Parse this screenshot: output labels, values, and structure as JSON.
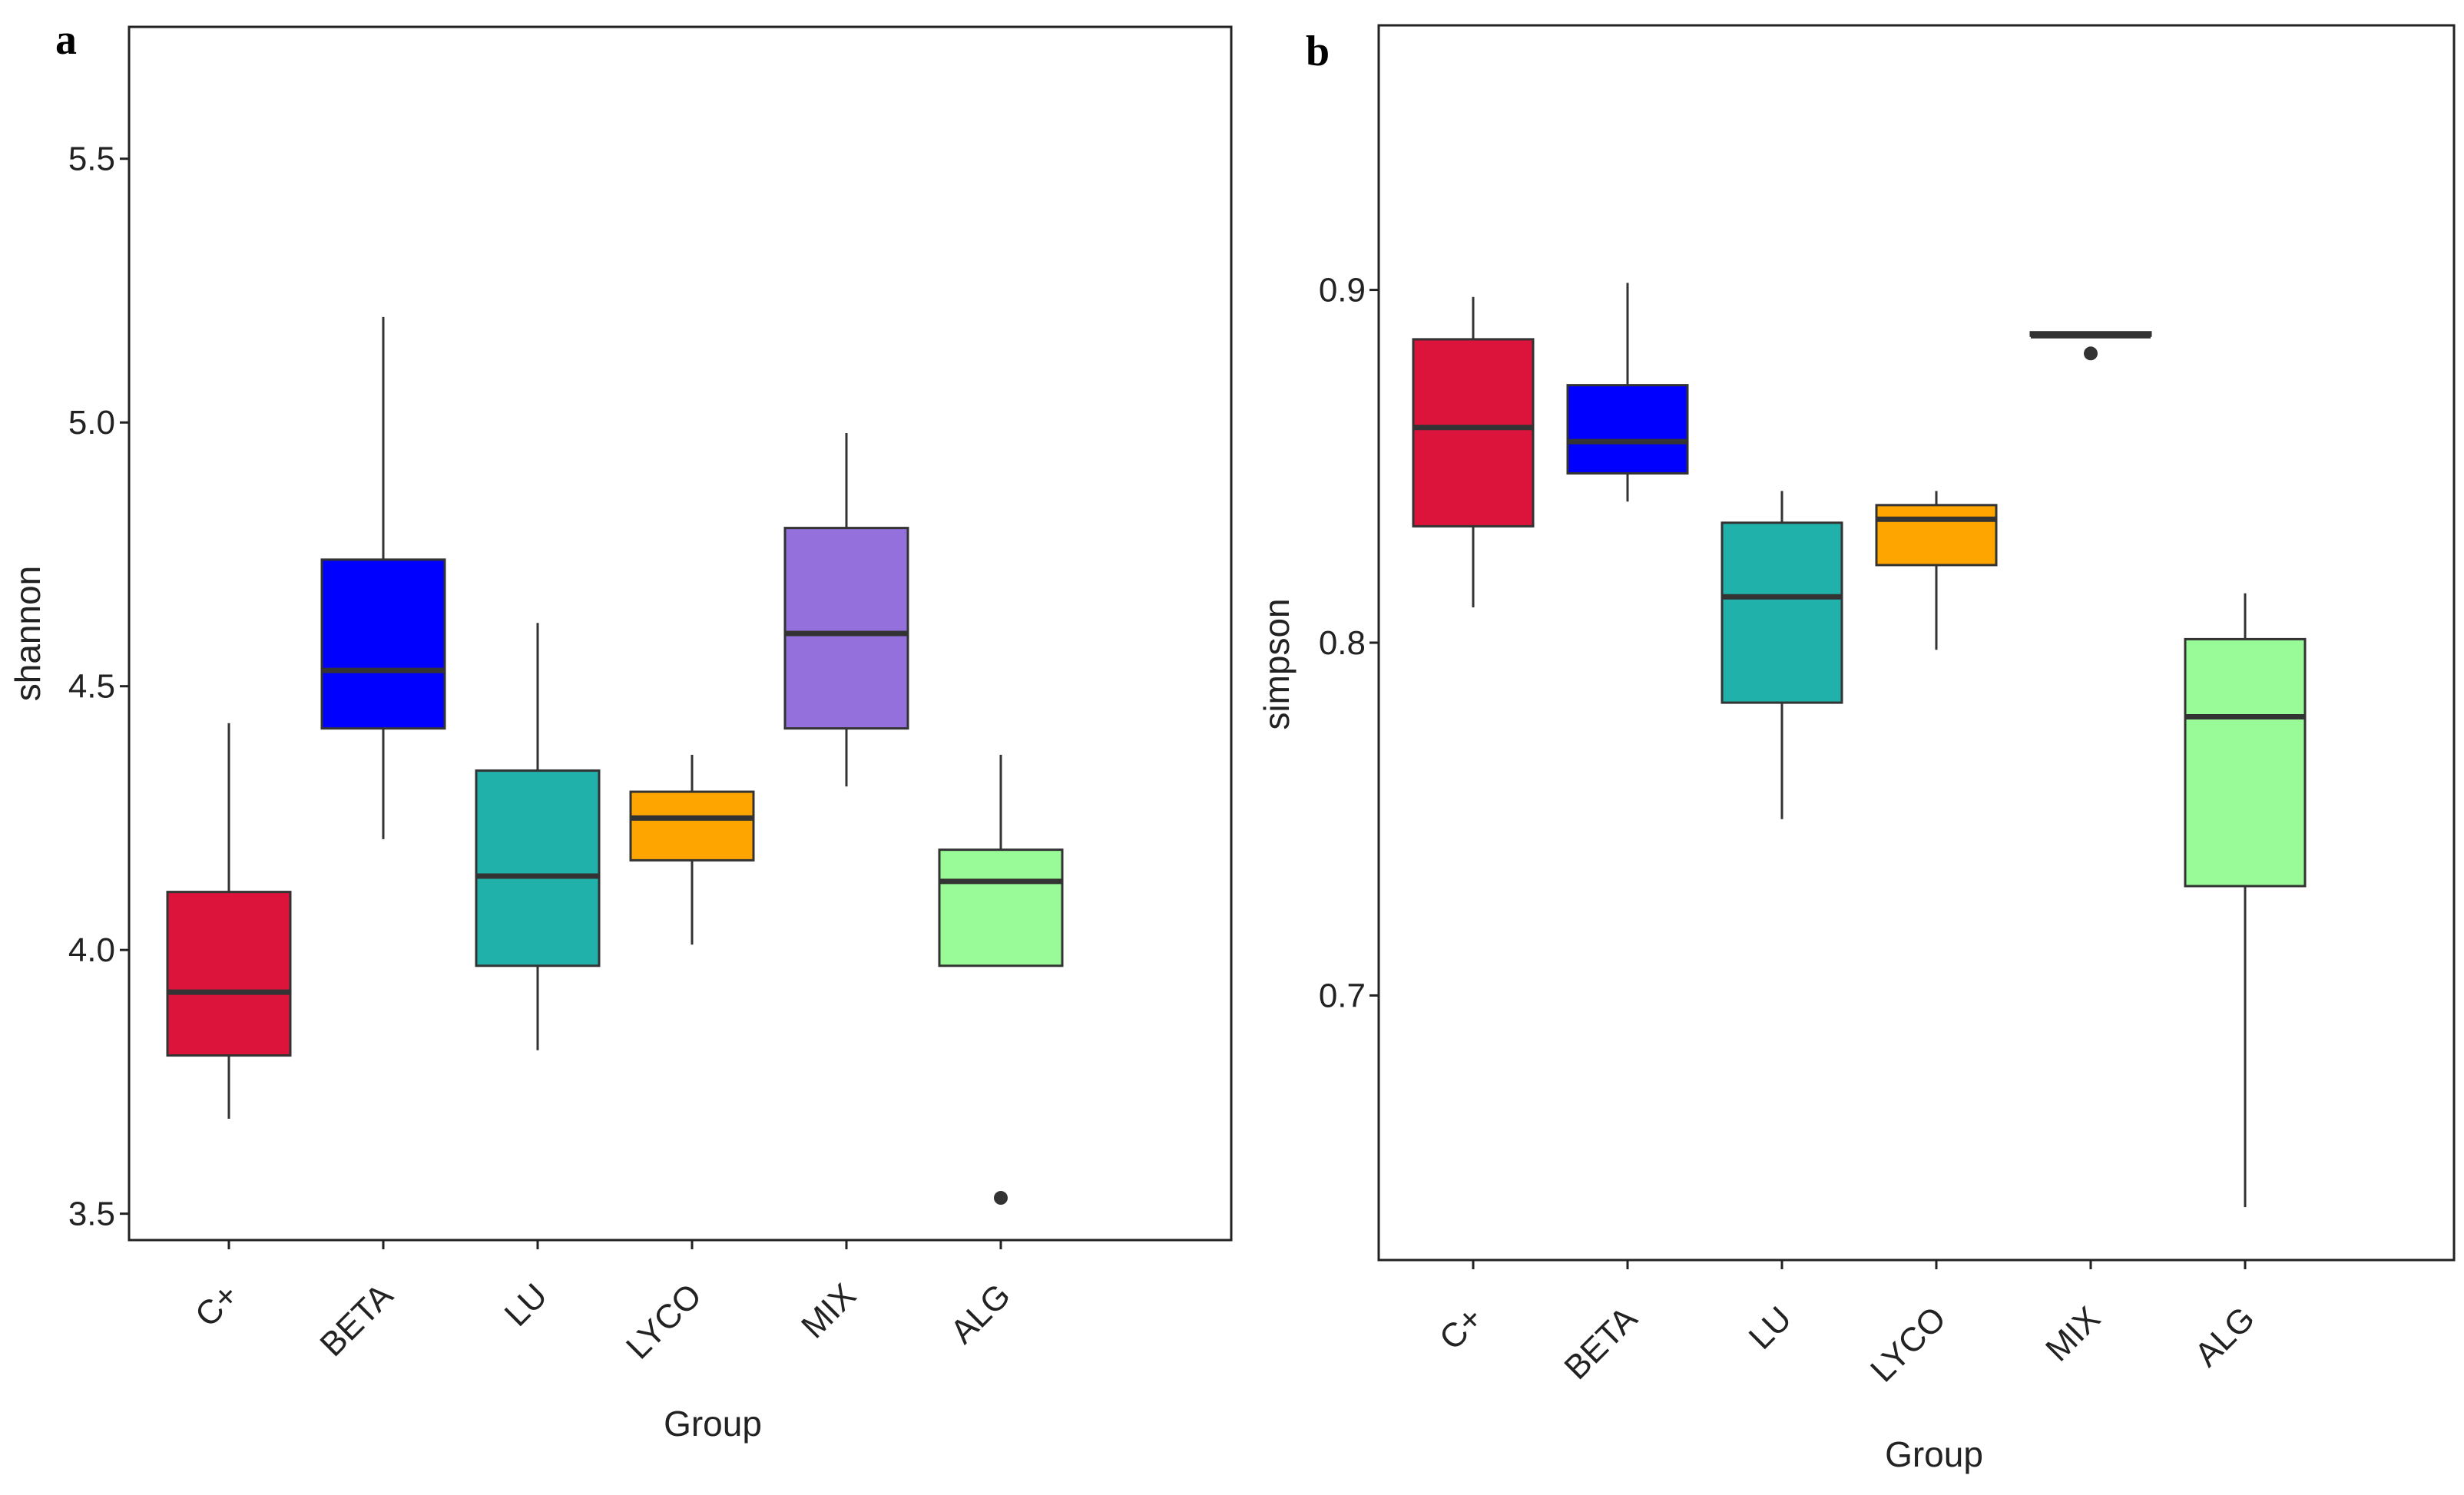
{
  "chart_data": [
    {
      "type": "boxplot",
      "panel_label": "a",
      "xlabel": "Group",
      "ylabel": "shannon",
      "ylim": [
        3.45,
        5.75
      ],
      "yticks": [
        "3.5",
        "4.0",
        "4.5",
        "5.0",
        "5.5"
      ],
      "categories": [
        "C+",
        "BETA",
        "LU",
        "LYCO",
        "MIX",
        "ALG"
      ],
      "boxes": [
        {
          "group": "C+",
          "color": "#DC143C",
          "whisker_low": 3.68,
          "q1": 3.8,
          "median": 3.92,
          "q3": 4.11,
          "whisker_high": 4.43,
          "outliers": []
        },
        {
          "group": "BETA",
          "color": "#0000FF",
          "whisker_low": 4.21,
          "q1": 4.42,
          "median": 4.53,
          "q3": 4.74,
          "whisker_high": 5.2,
          "outliers": []
        },
        {
          "group": "LU",
          "color": "#20B2AA",
          "whisker_low": 3.81,
          "q1": 3.97,
          "median": 4.14,
          "q3": 4.34,
          "whisker_high": 4.62,
          "outliers": []
        },
        {
          "group": "LYCO",
          "color": "#FFA500",
          "whisker_low": 4.01,
          "q1": 4.17,
          "median": 4.25,
          "q3": 4.3,
          "whisker_high": 4.37,
          "outliers": []
        },
        {
          "group": "MIX",
          "color": "#9370DB",
          "whisker_low": 4.31,
          "q1": 4.42,
          "median": 4.6,
          "q3": 4.8,
          "whisker_high": 4.98,
          "outliers": []
        },
        {
          "group": "ALG",
          "color": "#98FB98",
          "whisker_low": 3.97,
          "q1": 3.97,
          "median": 4.13,
          "q3": 4.19,
          "whisker_high": 4.37,
          "outliers": [
            3.53
          ]
        }
      ]
    },
    {
      "type": "boxplot",
      "panel_label": "b",
      "xlabel": "Group",
      "ylabel": "simpson",
      "ylim": [
        0.625,
        0.975
      ],
      "yticks": [
        "0.7",
        "0.8",
        "0.9"
      ],
      "categories": [
        "C+",
        "BETA",
        "LU",
        "LYCO",
        "MIX",
        "ALG"
      ],
      "boxes": [
        {
          "group": "C+",
          "color": "#DC143C",
          "whisker_low": 0.81,
          "q1": 0.833,
          "median": 0.861,
          "q3": 0.886,
          "whisker_high": 0.898,
          "outliers": []
        },
        {
          "group": "BETA",
          "color": "#0000FF",
          "whisker_low": 0.84,
          "q1": 0.848,
          "median": 0.857,
          "q3": 0.873,
          "whisker_high": 0.902,
          "outliers": []
        },
        {
          "group": "LU",
          "color": "#20B2AA",
          "whisker_low": 0.75,
          "q1": 0.783,
          "median": 0.813,
          "q3": 0.834,
          "whisker_high": 0.843,
          "outliers": []
        },
        {
          "group": "LYCO",
          "color": "#FFA500",
          "whisker_low": 0.798,
          "q1": 0.822,
          "median": 0.835,
          "q3": 0.839,
          "whisker_high": 0.843,
          "outliers": []
        },
        {
          "group": "MIX",
          "color": "#333333",
          "whisker_low": 0.887,
          "q1": 0.887,
          "median": 0.887,
          "q3": 0.888,
          "whisker_high": 0.888,
          "outliers": [
            0.882
          ]
        },
        {
          "group": "ALG",
          "color": "#98FB98",
          "whisker_low": 0.64,
          "q1": 0.731,
          "median": 0.779,
          "q3": 0.801,
          "whisker_high": 0.814,
          "outliers": []
        }
      ]
    }
  ]
}
